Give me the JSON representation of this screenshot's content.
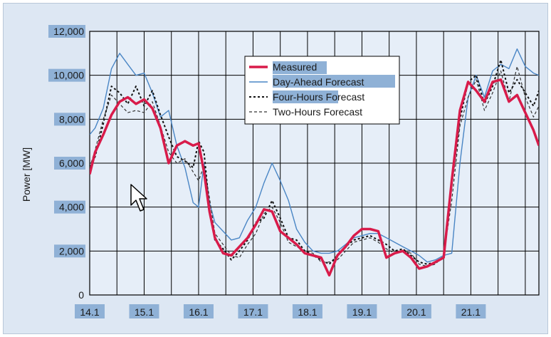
{
  "chart_data": {
    "type": "line",
    "ylabel": "Power [MW]",
    "xlabel": "",
    "title": "",
    "ylim": [
      0,
      12000
    ],
    "yticks": [
      0,
      2000,
      4000,
      6000,
      8000,
      10000,
      12000
    ],
    "ytick_labels": [
      "0",
      "2,000",
      "4,000",
      "6,000",
      "8,000",
      "10,000",
      "12,000"
    ],
    "xlim": [
      0,
      8.25
    ],
    "xticks": [
      0,
      1,
      2,
      3,
      4,
      5,
      6,
      7
    ],
    "xtick_labels": [
      "14.1",
      "15.1",
      "16.1",
      "17.1",
      "18.1",
      "19.1",
      "20.1",
      "21.1"
    ],
    "grid": true,
    "legend_position": "top-center",
    "series": [
      {
        "name": "Measured",
        "color": "#d81b4a",
        "style": "solid-thick",
        "x": [
          0,
          0.1,
          0.25,
          0.4,
          0.55,
          0.7,
          0.85,
          1.0,
          1.15,
          1.3,
          1.45,
          1.6,
          1.75,
          1.9,
          2.0,
          2.1,
          2.2,
          2.3,
          2.45,
          2.6,
          2.75,
          2.9,
          3.05,
          3.2,
          3.35,
          3.5,
          3.65,
          3.8,
          3.95,
          4.1,
          4.25,
          4.4,
          4.55,
          4.7,
          4.85,
          5.0,
          5.15,
          5.3,
          5.45,
          5.6,
          5.75,
          5.9,
          6.05,
          6.2,
          6.35,
          6.5,
          6.65,
          6.8,
          6.95,
          7.1,
          7.25,
          7.4,
          7.55,
          7.7,
          7.85,
          8.0,
          8.15,
          8.25
        ],
        "values": [
          5500,
          6500,
          7300,
          8200,
          8800,
          9000,
          8700,
          8900,
          8500,
          7600,
          6000,
          6800,
          7000,
          6800,
          6900,
          5600,
          3800,
          2600,
          1900,
          1800,
          2200,
          2600,
          3200,
          3900,
          3800,
          2900,
          2600,
          2300,
          1900,
          1800,
          1700,
          900,
          1800,
          2200,
          2700,
          3000,
          3000,
          2900,
          1700,
          1900,
          2000,
          1700,
          1200,
          1300,
          1500,
          1700,
          5200,
          8400,
          9700,
          9300,
          8800,
          9700,
          9800,
          8800,
          9100,
          8300,
          7500,
          6800
        ]
      },
      {
        "name": "Day-Ahead Forecast",
        "color": "#4a86c5",
        "style": "solid-thin",
        "x": [
          0,
          0.1,
          0.25,
          0.4,
          0.55,
          0.7,
          0.85,
          1.0,
          1.15,
          1.3,
          1.45,
          1.6,
          1.75,
          1.9,
          2.0,
          2.1,
          2.2,
          2.3,
          2.45,
          2.6,
          2.75,
          2.9,
          3.05,
          3.2,
          3.35,
          3.5,
          3.65,
          3.8,
          3.95,
          4.1,
          4.25,
          4.4,
          4.55,
          4.7,
          4.85,
          5.0,
          5.15,
          5.3,
          5.45,
          5.6,
          5.75,
          5.9,
          6.05,
          6.2,
          6.35,
          6.5,
          6.65,
          6.8,
          6.95,
          7.1,
          7.25,
          7.4,
          7.55,
          7.7,
          7.85,
          8.0,
          8.15,
          8.25
        ],
        "values": [
          7300,
          7600,
          8500,
          10300,
          11000,
          10500,
          10000,
          10100,
          9200,
          8100,
          8400,
          6800,
          5800,
          4200,
          4000,
          6000,
          4200,
          3300,
          2900,
          2500,
          2600,
          3400,
          4000,
          5100,
          6000,
          5200,
          4300,
          3000,
          2400,
          2000,
          1900,
          1900,
          2000,
          2300,
          2600,
          2700,
          2800,
          2800,
          2600,
          2400,
          2200,
          2000,
          1800,
          1500,
          1600,
          1800,
          1900,
          6000,
          9000,
          10000,
          9000,
          10200,
          10500,
          10300,
          11200,
          10400,
          10100,
          10000
        ]
      },
      {
        "name": "Four-Hours Forecast",
        "color": "#111111",
        "style": "dashed-thick",
        "x": [
          0,
          0.1,
          0.25,
          0.4,
          0.55,
          0.7,
          0.85,
          1.0,
          1.15,
          1.3,
          1.45,
          1.6,
          1.75,
          1.9,
          2.0,
          2.1,
          2.2,
          2.3,
          2.45,
          2.6,
          2.75,
          2.9,
          3.05,
          3.2,
          3.35,
          3.5,
          3.65,
          3.8,
          3.95,
          4.1,
          4.25,
          4.4,
          4.55,
          4.7,
          4.85,
          5.0,
          5.15,
          5.3,
          5.45,
          5.6,
          5.75,
          5.9,
          6.05,
          6.2,
          6.35,
          6.5,
          6.65,
          6.8,
          6.95,
          7.1,
          7.25,
          7.4,
          7.55,
          7.7,
          7.85,
          8.0,
          8.15,
          8.25
        ],
        "values": [
          5700,
          6300,
          7800,
          9500,
          9200,
          8700,
          9500,
          8600,
          9300,
          8200,
          7200,
          6300,
          6100,
          5800,
          7000,
          6500,
          3900,
          2500,
          2100,
          1600,
          2000,
          2500,
          3300,
          3500,
          4300,
          3500,
          2600,
          2500,
          2000,
          1800,
          1600,
          1400,
          1800,
          2200,
          2500,
          2600,
          2700,
          2500,
          2300,
          2000,
          2100,
          1800,
          1500,
          1400,
          1500,
          1700,
          5000,
          8000,
          9700,
          10000,
          8700,
          9500,
          10700,
          9200,
          9800,
          9200,
          8600,
          9300
        ]
      },
      {
        "name": "Two-Hours Forecast",
        "color": "#333333",
        "style": "dashed-thin",
        "x": [
          0,
          0.1,
          0.25,
          0.4,
          0.55,
          0.7,
          0.85,
          1.0,
          1.15,
          1.3,
          1.45,
          1.6,
          1.75,
          1.9,
          2.0,
          2.1,
          2.2,
          2.3,
          2.45,
          2.6,
          2.75,
          2.9,
          3.05,
          3.2,
          3.35,
          3.5,
          3.65,
          3.8,
          3.95,
          4.1,
          4.25,
          4.4,
          4.55,
          4.7,
          4.85,
          5.0,
          5.15,
          5.3,
          5.45,
          5.6,
          5.75,
          5.9,
          6.05,
          6.2,
          6.35,
          6.5,
          6.65,
          6.8,
          6.95,
          7.1,
          7.25,
          7.4,
          7.55,
          7.7,
          7.85,
          8.0,
          8.15,
          8.25
        ],
        "values": [
          5800,
          6600,
          8000,
          9100,
          8700,
          8300,
          8400,
          8300,
          8800,
          7700,
          6500,
          6000,
          6200,
          5600,
          5200,
          5900,
          4400,
          2800,
          2300,
          1800,
          1700,
          2300,
          2800,
          3700,
          4000,
          3300,
          2400,
          2200,
          2000,
          1900,
          1500,
          1500,
          1600,
          2000,
          2400,
          2500,
          2600,
          2400,
          2100,
          1900,
          2000,
          1900,
          1400,
          1300,
          1400,
          1800,
          4300,
          7700,
          9000,
          9800,
          8400,
          9200,
          10200,
          8800,
          10400,
          9000,
          8100,
          8600
        ]
      }
    ]
  }
}
